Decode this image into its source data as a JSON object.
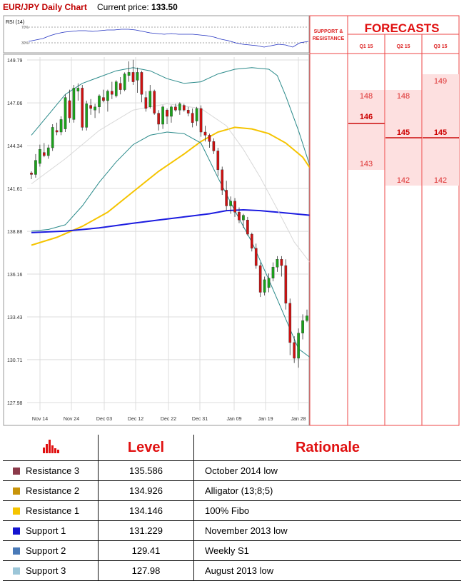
{
  "header": {
    "title": "EUR/JPY Daily Chart",
    "price_label": "Current price:",
    "price_value": "133.50"
  },
  "rsi": {
    "label": "RSI (14)",
    "level_high": "70%",
    "level_low": "30%"
  },
  "chart_data": {
    "type": "candlestick",
    "title": "EUR/JPY Daily Chart",
    "ylim": [
      127.98,
      149.79
    ],
    "y_ticks": [
      "149.79",
      "147.06",
      "144.34",
      "141.61",
      "138.88",
      "136.16",
      "133.43",
      "130.71",
      "127.98"
    ],
    "x_ticks": [
      "Nov 14",
      "Nov 24",
      "Dec 03",
      "Dec 12",
      "Dec 22",
      "Dec 31",
      "Jan 09",
      "Jan 19",
      "Jan 28"
    ],
    "candles": [
      [
        142.6,
        142.7,
        142.2,
        142.5
      ],
      [
        142.5,
        143.8,
        142.3,
        143.4
      ],
      [
        143.2,
        144.4,
        143.0,
        144.1
      ],
      [
        143.9,
        144.5,
        143.6,
        143.7
      ],
      [
        143.7,
        144.4,
        143.5,
        144.2
      ],
      [
        144.2,
        145.7,
        144.0,
        145.5
      ],
      [
        145.3,
        145.8,
        145.0,
        145.2
      ],
      [
        145.2,
        146.2,
        145.0,
        146.0
      ],
      [
        145.4,
        147.6,
        145.2,
        147.4
      ],
      [
        147.2,
        147.9,
        145.8,
        146.1
      ],
      [
        146.0,
        148.2,
        145.8,
        148.0
      ],
      [
        147.8,
        148.3,
        147.2,
        148.0
      ],
      [
        148.0,
        148.2,
        145.3,
        145.5
      ],
      [
        145.5,
        147.2,
        145.3,
        147.0
      ],
      [
        146.9,
        147.3,
        146.3,
        146.7
      ],
      [
        146.6,
        147.0,
        146.1,
        146.8
      ],
      [
        146.8,
        147.6,
        146.4,
        147.5
      ],
      [
        147.4,
        147.9,
        147.1,
        147.2
      ],
      [
        147.2,
        147.9,
        146.5,
        147.8
      ],
      [
        147.8,
        148.4,
        147.3,
        147.6
      ],
      [
        147.5,
        148.5,
        147.4,
        148.4
      ],
      [
        148.3,
        148.7,
        147.6,
        147.9
      ],
      [
        147.9,
        149.0,
        147.8,
        148.9
      ],
      [
        148.8,
        149.7,
        148.4,
        149.0
      ],
      [
        149.0,
        149.8,
        148.2,
        148.4
      ],
      [
        148.5,
        149.3,
        147.7,
        149.0
      ],
      [
        149.0,
        149.1,
        147.1,
        147.6
      ],
      [
        147.4,
        147.8,
        146.5,
        146.7
      ],
      [
        146.8,
        148.2,
        146.7,
        147.8
      ],
      [
        147.8,
        147.9,
        146.3,
        146.4
      ],
      [
        146.4,
        146.6,
        145.3,
        145.7
      ],
      [
        145.7,
        146.9,
        145.4,
        146.8
      ],
      [
        146.6,
        146.7,
        145.7,
        146.2
      ],
      [
        146.2,
        146.9,
        145.8,
        146.8
      ],
      [
        146.8,
        147.0,
        146.5,
        146.6
      ],
      [
        146.6,
        147.1,
        146.3,
        147.0
      ],
      [
        146.9,
        147.0,
        146.5,
        146.6
      ],
      [
        146.6,
        146.8,
        146.2,
        146.4
      ],
      [
        146.4,
        146.7,
        145.5,
        145.8
      ],
      [
        145.9,
        146.8,
        145.6,
        146.7
      ],
      [
        146.7,
        146.9,
        144.9,
        145.2
      ],
      [
        145.2,
        145.6,
        144.6,
        145.0
      ],
      [
        145.0,
        145.1,
        144.2,
        144.6
      ],
      [
        144.6,
        144.8,
        143.8,
        144.0
      ],
      [
        144.0,
        144.2,
        142.4,
        142.8
      ],
      [
        142.8,
        143.0,
        141.2,
        141.5
      ],
      [
        141.5,
        142.1,
        140.2,
        140.5
      ],
      [
        140.5,
        141.1,
        140.0,
        140.8
      ],
      [
        140.8,
        141.0,
        139.8,
        140.1
      ],
      [
        140.1,
        140.4,
        139.4,
        139.6
      ],
      [
        139.6,
        140.0,
        139.1,
        139.9
      ],
      [
        139.6,
        139.8,
        138.6,
        138.7
      ],
      [
        138.7,
        138.8,
        137.6,
        137.8
      ],
      [
        137.8,
        138.1,
        136.5,
        136.7
      ],
      [
        136.7,
        136.9,
        134.7,
        135.0
      ],
      [
        135.0,
        136.0,
        134.8,
        135.8
      ],
      [
        135.3,
        136.2,
        135.0,
        135.9
      ],
      [
        135.9,
        136.9,
        135.7,
        136.6
      ],
      [
        136.6,
        137.3,
        136.3,
        137.1
      ],
      [
        137.1,
        137.3,
        136.0,
        136.7
      ],
      [
        136.7,
        137.1,
        133.9,
        134.3
      ],
      [
        134.3,
        134.6,
        131.0,
        131.8
      ],
      [
        131.8,
        132.2,
        130.5,
        130.8
      ],
      [
        130.8,
        132.7,
        130.2,
        132.4
      ],
      [
        132.4,
        133.6,
        132.0,
        133.2
      ],
      [
        133.2,
        133.9,
        133.1,
        133.5
      ]
    ],
    "lines": [
      {
        "name": "yellow-ma",
        "color": "#f5c400",
        "points": [
          [
            0,
            138.0
          ],
          [
            6,
            138.5
          ],
          [
            12,
            139.2
          ],
          [
            18,
            140.1
          ],
          [
            24,
            141.4
          ],
          [
            30,
            142.7
          ],
          [
            36,
            143.8
          ],
          [
            40,
            144.6
          ],
          [
            44,
            145.2
          ],
          [
            48,
            145.5
          ],
          [
            52,
            145.4
          ],
          [
            56,
            145.1
          ],
          [
            60,
            144.5
          ],
          [
            64,
            143.6
          ],
          [
            66,
            142.8
          ]
        ]
      },
      {
        "name": "blue-ma",
        "color": "#1c1ce0",
        "points": [
          [
            0,
            138.8
          ],
          [
            8,
            138.9
          ],
          [
            16,
            139.1
          ],
          [
            24,
            139.4
          ],
          [
            30,
            139.6
          ],
          [
            36,
            139.8
          ],
          [
            42,
            140.0
          ],
          [
            46,
            140.2
          ],
          [
            50,
            140.25
          ],
          [
            54,
            140.2
          ],
          [
            58,
            140.1
          ],
          [
            62,
            140.0
          ],
          [
            66,
            139.9
          ]
        ]
      },
      {
        "name": "bb-upper",
        "color": "#2a8a8a",
        "points": [
          [
            0,
            145.0
          ],
          [
            4,
            146.3
          ],
          [
            8,
            147.6
          ],
          [
            12,
            148.3
          ],
          [
            16,
            148.7
          ],
          [
            20,
            149.1
          ],
          [
            24,
            149.3
          ],
          [
            28,
            149.1
          ],
          [
            32,
            148.6
          ],
          [
            36,
            148.3
          ],
          [
            40,
            148.4
          ],
          [
            44,
            148.9
          ],
          [
            48,
            149.2
          ],
          [
            52,
            149.3
          ],
          [
            56,
            149.2
          ],
          [
            58,
            148.8
          ],
          [
            60,
            147.5
          ],
          [
            63,
            145.3
          ],
          [
            66,
            142.8
          ]
        ]
      },
      {
        "name": "bb-lower",
        "color": "#2a8a8a",
        "points": [
          [
            0,
            138.9
          ],
          [
            4,
            139.0
          ],
          [
            8,
            139.3
          ],
          [
            12,
            140.5
          ],
          [
            16,
            142.0
          ],
          [
            20,
            143.3
          ],
          [
            24,
            144.4
          ],
          [
            28,
            145.0
          ],
          [
            32,
            145.2
          ],
          [
            36,
            145.1
          ],
          [
            40,
            144.5
          ],
          [
            44,
            142.3
          ],
          [
            48,
            140.2
          ],
          [
            52,
            138.2
          ],
          [
            56,
            135.8
          ],
          [
            60,
            133.3
          ],
          [
            63,
            131.4
          ],
          [
            66,
            130.8
          ]
        ]
      },
      {
        "name": "bb-mid",
        "color": "#d8d8d8",
        "points": [
          [
            0,
            141.9
          ],
          [
            8,
            143.5
          ],
          [
            16,
            145.3
          ],
          [
            24,
            146.6
          ],
          [
            32,
            147.0
          ],
          [
            40,
            146.7
          ],
          [
            46,
            145.6
          ],
          [
            50,
            144.1
          ],
          [
            54,
            142.3
          ],
          [
            58,
            140.3
          ],
          [
            62,
            138.2
          ],
          [
            66,
            136.8
          ]
        ]
      }
    ],
    "levels": [
      {
        "name": "Resistance 3",
        "value": "135.586",
        "color": "#7b2a3a"
      },
      {
        "name": "Resistance 2",
        "value": "134.926",
        "color": "#c8a060"
      },
      {
        "name": "Resistance 1",
        "value": "134.146",
        "color": "#f5c400"
      },
      {
        "name": "Support 1",
        "value": "131.229",
        "color": "#1a1ad0"
      },
      {
        "name": "Support 2",
        "value": "129.410",
        "color": "#3a7ab0"
      },
      {
        "name": "Support 3",
        "value": "127.980",
        "color": "#9cc6d8"
      }
    ]
  },
  "forecasts": {
    "sr_label": "SUPPORT & RESISTANCE",
    "title": "FORECASTS",
    "columns": [
      "Q1 15",
      "Q2 15",
      "Q3 15"
    ],
    "q1": {
      "upper": "148",
      "middle": "146",
      "lower": "143"
    },
    "q2": {
      "upper": "148",
      "middle": "145",
      "lower": "142"
    },
    "q3": {
      "upper": "149",
      "middle": "145",
      "lower": "142"
    }
  },
  "table": {
    "headers": [
      "Level",
      "Rationale"
    ],
    "rows": [
      {
        "name": "Resistance 3",
        "level": "135.586",
        "rationale": "October 2014 low",
        "color": "#8b3a4a"
      },
      {
        "name": "Resistance 2",
        "level": "134.926",
        "rationale": "Alligator (13;8;5)",
        "color": "#c8940a"
      },
      {
        "name": "Resistance 1",
        "level": "134.146",
        "rationale": "100% Fibo",
        "color": "#f5c400"
      },
      {
        "name": "Support 1",
        "level": "131.229",
        "rationale": "November 2013 low",
        "color": "#1414d0"
      },
      {
        "name": "Support 2",
        "level": "129.41",
        "rationale": "Weekly S1",
        "color": "#4a7ab8"
      },
      {
        "name": "Support 3",
        "level": "127.98",
        "rationale": "August  2013 low",
        "color": "#9cc6d8"
      }
    ]
  }
}
